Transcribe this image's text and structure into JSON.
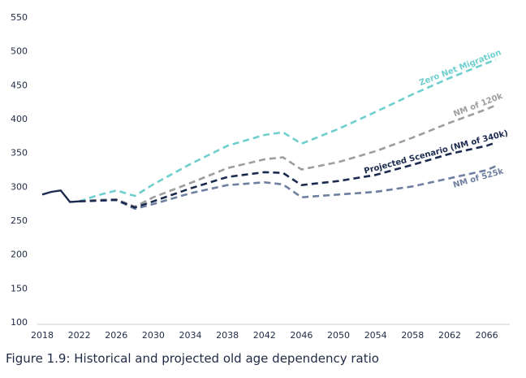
{
  "caption": "Figure 1.9: Historical and projected old age dependency ratio",
  "chart_data": {
    "type": "line",
    "title": "",
    "xlabel": "",
    "ylabel": "",
    "ylim": [
      100,
      550
    ],
    "yticks": [
      100,
      150,
      200,
      250,
      300,
      350,
      400,
      450,
      500,
      550
    ],
    "xlim": [
      2018,
      2067
    ],
    "xticks": [
      2018,
      2022,
      2026,
      2030,
      2034,
      2038,
      2042,
      2046,
      2050,
      2054,
      2058,
      2062,
      2066
    ],
    "grid": false,
    "series": [
      {
        "name": "",
        "style": "solid",
        "color": "#1b2a4e",
        "x": [
          2018,
          2019,
          2020,
          2021,
          2022
        ],
        "y": [
          288,
          292,
          294,
          277,
          278
        ]
      },
      {
        "name": "Zero Net Migration",
        "style": "dashed",
        "color": "#6fcfcf",
        "x": [
          2022,
          2024,
          2026,
          2028,
          2030,
          2034,
          2038,
          2042,
          2044,
          2046,
          2050,
          2054,
          2058,
          2062,
          2066,
          2067
        ],
        "y": [
          278,
          287,
          294,
          286,
          303,
          333,
          360,
          376,
          380,
          363,
          385,
          410,
          436,
          460,
          482,
          487
        ]
      },
      {
        "name": "NM of 120k",
        "style": "dashed",
        "color": "#9e9e9e",
        "x": [
          2022,
          2024,
          2026,
          2028,
          2030,
          2034,
          2038,
          2042,
          2044,
          2046,
          2050,
          2054,
          2058,
          2062,
          2066,
          2067
        ],
        "y": [
          278,
          280,
          281,
          270,
          284,
          305,
          327,
          340,
          343,
          325,
          336,
          352,
          372,
          394,
          414,
          420
        ]
      },
      {
        "name": "Projected Scenario  (NM of 340k)",
        "style": "dashed",
        "color": "#1b2a4e",
        "x": [
          2022,
          2024,
          2026,
          2028,
          2030,
          2034,
          2038,
          2042,
          2044,
          2046,
          2050,
          2054,
          2058,
          2062,
          2066,
          2067
        ],
        "y": [
          278,
          279,
          280,
          269,
          278,
          297,
          314,
          321,
          320,
          302,
          308,
          317,
          332,
          348,
          360,
          365
        ]
      },
      {
        "name": "NM of 525k",
        "style": "dashed",
        "color": "#6e7fa0",
        "x": [
          2022,
          2024,
          2026,
          2028,
          2030,
          2034,
          2038,
          2042,
          2044,
          2046,
          2050,
          2054,
          2058,
          2062,
          2066,
          2067
        ],
        "y": [
          278,
          279,
          280,
          267,
          274,
          290,
          302,
          306,
          303,
          284,
          288,
          292,
          300,
          312,
          324,
          330
        ]
      }
    ]
  }
}
